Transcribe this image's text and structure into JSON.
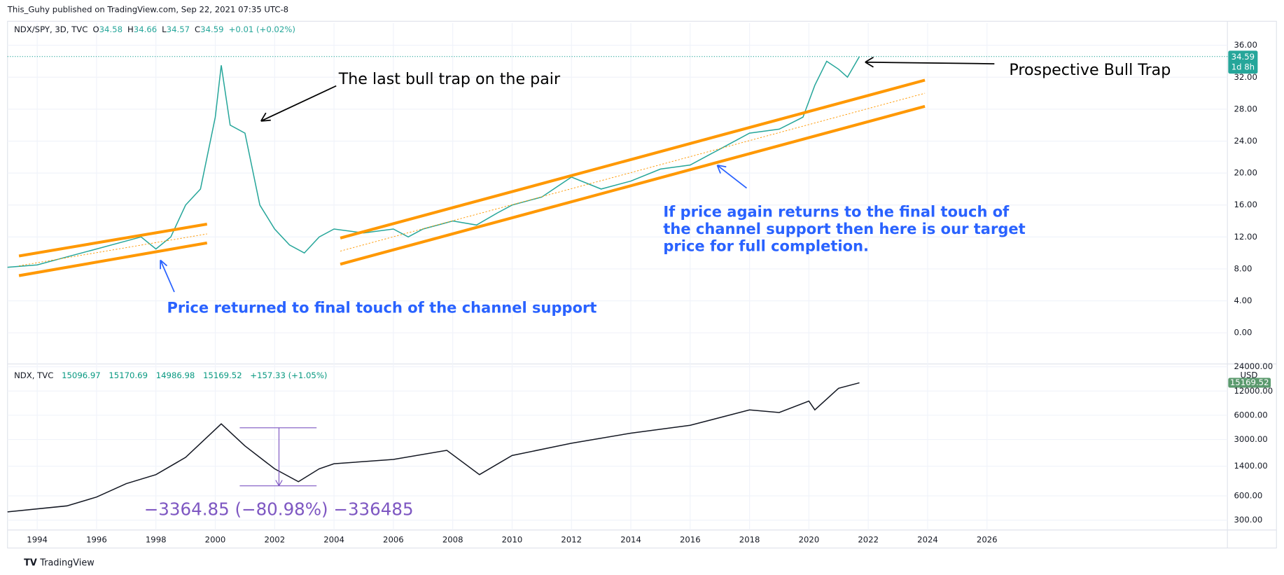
{
  "header": {
    "published": "This_Guhy published on TradingView.com, Sep 22, 2021 07:35 UTC-8",
    "footer": "TradingView"
  },
  "chart_data": [
    {
      "type": "line",
      "symbol": "NDX/SPY, 3D, TVC",
      "legend": {
        "o_label": "O",
        "open": 34.58,
        "h_label": "H",
        "high": 34.66,
        "l_label": "L",
        "low": 34.57,
        "c_label": "C",
        "close": 34.59,
        "change": "+0.01 (+0.02%)"
      },
      "last_label": "34.59",
      "countdown": "1d 8h",
      "color": "#26a69a",
      "x": [
        1993.0,
        1994,
        1995,
        1996,
        1997,
        1997.5,
        1998,
        1998.5,
        1999,
        1999.5,
        2000,
        2000.2,
        2000.5,
        2001,
        2001.5,
        2002,
        2002.5,
        2003,
        2003.5,
        2004,
        2005,
        2006,
        2006.5,
        2007,
        2008,
        2008.8,
        2009.5,
        2010,
        2011,
        2012,
        2013,
        2014,
        2015,
        2016,
        2017,
        2018,
        2019,
        2019.8,
        2020.2,
        2020.6,
        2021,
        2021.3,
        2021.7
      ],
      "series": [
        {
          "name": "NDX/SPY",
          "color": "#26a69a",
          "values": [
            8.2,
            8.5,
            9.5,
            10.5,
            11.5,
            12,
            10.5,
            12,
            16,
            18,
            27,
            33.5,
            26,
            25,
            16,
            13,
            11,
            10,
            12,
            13,
            12.5,
            13,
            12,
            13,
            14,
            13.5,
            15,
            16,
            17,
            19.5,
            18,
            19,
            20.5,
            21,
            23,
            25,
            25.5,
            27,
            31,
            34,
            33,
            32,
            34.59
          ]
        }
      ],
      "xlim": [
        1993.0,
        2034.1
      ],
      "xticks": [
        1994,
        1996,
        1998,
        2000,
        2002,
        2004,
        2006,
        2008,
        2010,
        2012,
        2014,
        2016,
        2018,
        2020,
        2022,
        2024,
        2026
      ],
      "ylim": [
        -3.9,
        38.8
      ],
      "yticks": [
        {
          "value": 0,
          "label": "0.00"
        },
        {
          "value": 4,
          "label": "4.00"
        },
        {
          "value": 8,
          "label": "8.00"
        },
        {
          "value": 12,
          "label": "12.00"
        },
        {
          "value": 16,
          "label": "16.00"
        },
        {
          "value": 20,
          "label": "20.00"
        },
        {
          "value": 24,
          "label": "24.00"
        },
        {
          "value": 28,
          "label": "28.00"
        },
        {
          "value": 32,
          "label": "32.00"
        },
        {
          "value": 36,
          "label": "36.00"
        }
      ],
      "annotations": {
        "last_trap": "The last bull trap on the pair",
        "prospective": "Prospective Bull Trap",
        "target": [
          "If price again returns to the final touch of",
          "the channel support then here is our target",
          "price for full completion."
        ],
        "returned": "Price returned to final touch of the channel support"
      }
    },
    {
      "type": "line",
      "symbol": "NDX, TVC",
      "legend": {
        "open": 15096.97,
        "high": 15170.69,
        "low": 14986.98,
        "close": 15169.52,
        "change": "+157.33 (+1.05%)"
      },
      "last_label": "15169.52",
      "currency": "USD",
      "log_scale": true,
      "color": "#131722",
      "x": [
        1993.0,
        1995,
        1996,
        1997,
        1998,
        1999,
        2000.2,
        2001,
        2002,
        2002.8,
        2003.5,
        2004,
        2006,
        2007.8,
        2008.9,
        2010,
        2012,
        2014,
        2016,
        2018,
        2019,
        2020,
        2020.2,
        2021,
        2021.7
      ],
      "series": [
        {
          "name": "NDX",
          "color": "#131722",
          "values": [
            380,
            450,
            580,
            850,
            1100,
            1800,
            4700,
            2500,
            1300,
            900,
            1300,
            1500,
            1700,
            2200,
            1100,
            1900,
            2700,
            3600,
            4500,
            7000,
            6500,
            9000,
            7000,
            13000,
            15169.52
          ]
        }
      ],
      "ylim": [
        26000,
        226
      ],
      "yticks": [
        {
          "value": 300,
          "label": "300.00"
        },
        {
          "value": 600,
          "label": "600.00"
        },
        {
          "value": 1400,
          "label": "1400.00"
        },
        {
          "value": 3000,
          "label": "3000.00"
        },
        {
          "value": 6000,
          "label": "6000.00"
        },
        {
          "value": 12000,
          "label": "12000.00"
        },
        {
          "value": 24000,
          "label": "24000.00"
        }
      ],
      "measure": "−3364.85 (−80.98%) −336485"
    }
  ]
}
